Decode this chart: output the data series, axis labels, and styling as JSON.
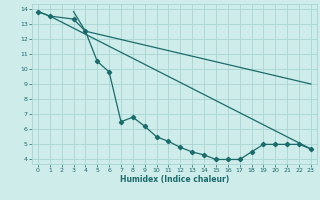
{
  "xlabel": "Humidex (Indice chaleur)",
  "xlim": [
    -0.5,
    23.5
  ],
  "ylim": [
    3.7,
    14.3
  ],
  "xticks": [
    0,
    1,
    2,
    3,
    4,
    5,
    6,
    7,
    8,
    9,
    10,
    11,
    12,
    13,
    14,
    15,
    16,
    17,
    18,
    19,
    20,
    21,
    22,
    23
  ],
  "yticks": [
    4,
    5,
    6,
    7,
    8,
    9,
    10,
    11,
    12,
    13,
    14
  ],
  "bg_color": "#cdecea",
  "grid_color": "#a8d5d1",
  "line_color": "#1a6b6b",
  "line1_x": [
    0,
    1,
    3,
    4,
    5,
    6,
    7,
    8,
    9,
    10,
    11,
    12,
    13,
    14,
    15,
    16,
    17,
    18,
    19,
    20,
    21,
    22,
    23
  ],
  "line1_y": [
    13.8,
    13.5,
    13.3,
    12.5,
    10.5,
    9.8,
    6.5,
    6.8,
    6.2,
    5.5,
    5.2,
    4.8,
    4.5,
    4.3,
    4.0,
    4.0,
    4.0,
    4.5,
    5.0,
    5.0,
    5.0,
    5.0,
    4.7
  ],
  "line2_x": [
    0,
    1,
    23
  ],
  "line2_y": [
    13.8,
    13.5,
    4.7
  ],
  "line3_x": [
    3,
    4,
    23
  ],
  "line3_y": [
    13.8,
    12.5,
    9.0
  ]
}
